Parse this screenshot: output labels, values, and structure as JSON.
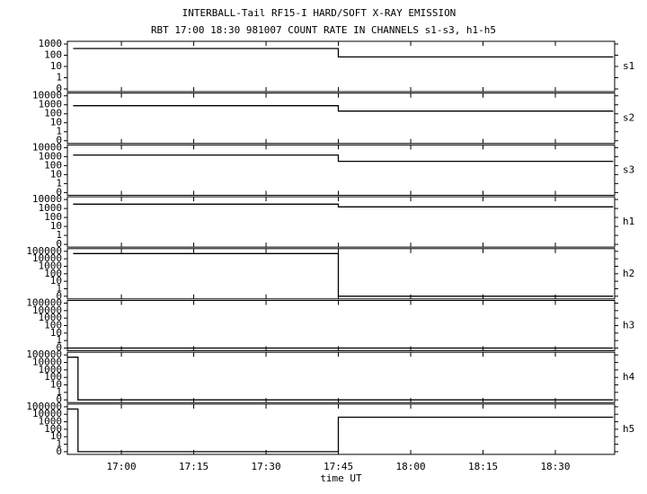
{
  "chart_data": [
    {
      "type": "line",
      "title": "INTERBALL-Tail RF15-I HARD/SOFT X-RAY EMISSION",
      "subtitle": "RBT 17:00 18:30 981007  COUNT RATE IN CHANNELS s1-s3, h1-h5",
      "label": "s1",
      "yscale": "log",
      "xlim": [
        1008.8,
        1122.3
      ],
      "ylim": [
        0,
        1000
      ],
      "yticks": [
        0,
        1,
        10,
        100,
        1000
      ],
      "series": [
        {
          "color": "#000000",
          "x": [
            1010,
            1065,
            1065,
            1122
          ],
          "values": [
            400,
            400,
            70,
            70
          ]
        }
      ]
    },
    {
      "type": "line",
      "label": "s2",
      "yscale": "log",
      "xlim": [
        1008.8,
        1122.3
      ],
      "ylim": [
        0,
        10000
      ],
      "yticks": [
        0,
        1,
        10,
        100,
        1000,
        10000
      ],
      "series": [
        {
          "color": "#000000",
          "x": [
            1010,
            1065,
            1065,
            1122
          ],
          "values": [
            800,
            800,
            200,
            200
          ]
        }
      ]
    },
    {
      "type": "line",
      "label": "s3",
      "yscale": "log",
      "xlim": [
        1008.8,
        1122.3
      ],
      "ylim": [
        0,
        10000
      ],
      "yticks": [
        0,
        1,
        10,
        100,
        1000,
        10000
      ],
      "series": [
        {
          "color": "#000000",
          "x": [
            1010,
            1065,
            1065,
            1122
          ],
          "values": [
            1500,
            1500,
            300,
            300
          ]
        }
      ]
    },
    {
      "type": "line",
      "label": "h1",
      "yscale": "log",
      "xlim": [
        1008.8,
        1122.3
      ],
      "ylim": [
        0,
        10000
      ],
      "yticks": [
        0,
        1,
        10,
        100,
        1000,
        10000
      ],
      "series": [
        {
          "color": "#000000",
          "x": [
            1010,
            1065,
            1065,
            1122
          ],
          "values": [
            3000,
            3000,
            1500,
            1500
          ]
        }
      ]
    },
    {
      "type": "line",
      "label": "h2",
      "yscale": "log",
      "xlim": [
        1008.8,
        1122.3
      ],
      "ylim": [
        0,
        100000
      ],
      "yticks": [
        0,
        1,
        10,
        100,
        1000,
        10000,
        100000
      ],
      "series": [
        {
          "color": "#000000",
          "x": [
            1010,
            1065,
            1065,
            1122
          ],
          "values": [
            50000,
            50000,
            0,
            0
          ]
        }
      ]
    },
    {
      "type": "line",
      "label": "h3",
      "yscale": "log",
      "xlim": [
        1008.8,
        1122.3
      ],
      "ylim": [
        0,
        100000
      ],
      "yticks": [
        0,
        1,
        10,
        100,
        1000,
        10000,
        100000
      ],
      "series": [
        {
          "color": "#000000",
          "x": [
            1008.8,
            1122
          ],
          "values": [
            0,
            0
          ]
        }
      ]
    },
    {
      "type": "line",
      "label": "h4",
      "yscale": "log",
      "xlim": [
        1008.8,
        1122.3
      ],
      "ylim": [
        0,
        100000
      ],
      "yticks": [
        0,
        1,
        10,
        100,
        1000,
        10000,
        100000
      ],
      "series": [
        {
          "color": "#000000",
          "x": [
            1008.8,
            1011,
            1011,
            1122
          ],
          "values": [
            50000,
            50000,
            0,
            0
          ]
        }
      ]
    },
    {
      "type": "line",
      "label": "h5",
      "yscale": "log",
      "xlabel": "time UT",
      "xlim": [
        1008.8,
        1122.3
      ],
      "ylim": [
        0,
        100000
      ],
      "yticks": [
        0,
        1,
        10,
        100,
        1000,
        10000,
        100000
      ],
      "xticks": [
        {
          "value": 1020,
          "label": "17:00"
        },
        {
          "value": 1035,
          "label": "17:15"
        },
        {
          "value": 1050,
          "label": "17:30"
        },
        {
          "value": 1065,
          "label": "17:45"
        },
        {
          "value": 1080,
          "label": "18:00"
        },
        {
          "value": 1095,
          "label": "18:15"
        },
        {
          "value": 1110,
          "label": "18:30"
        }
      ],
      "series": [
        {
          "color": "#000000",
          "x": [
            1008.8,
            1011,
            1011,
            1065,
            1065,
            1122
          ],
          "values": [
            50000,
            50000,
            0,
            0,
            4000,
            4000
          ]
        }
      ]
    }
  ]
}
